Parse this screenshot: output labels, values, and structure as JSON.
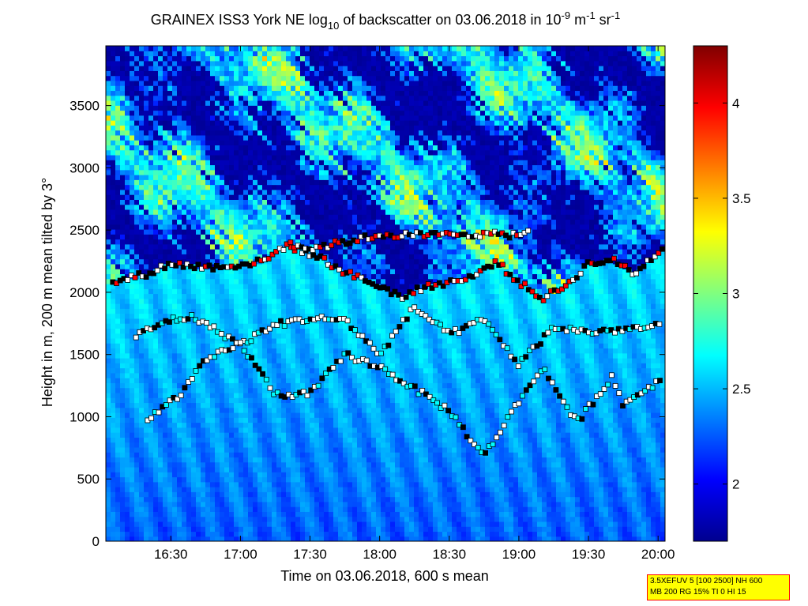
{
  "chart_data": {
    "type": "heatmap",
    "title": {
      "part1": "GRAINEX ISS3 York NE log",
      "sub1": "10",
      "part2": " of backscatter on 03.06.2018 in 10",
      "sup1": "-9",
      "part3": " m",
      "sup2": "-1",
      "part4": " sr",
      "sup3": "-1"
    },
    "xlabel": "Time on 03.06.2018, 600 s mean",
    "ylabel": "Height in m, 200 m mean tilted by 3°",
    "x_ticks": [
      "16:30",
      "17:00",
      "17:30",
      "18:00",
      "18:30",
      "19:00",
      "19:30",
      "20:00"
    ],
    "y_ticks": [
      "0",
      "500",
      "1000",
      "1500",
      "2000",
      "2500",
      "3000",
      "3500"
    ],
    "x_range": [
      "16:02",
      "20:03"
    ],
    "ylim": [
      0,
      3980
    ],
    "colorbar": {
      "range": [
        1.7,
        4.3
      ],
      "ticks": [
        "2",
        "2.5",
        "3",
        "3.5",
        "4"
      ],
      "colormap": "jet"
    },
    "features": {
      "cloud_top_layer": [
        [
          "16:05",
          2080
        ],
        [
          "16:20",
          2150
        ],
        [
          "16:30",
          2230
        ],
        [
          "16:45",
          2200
        ],
        [
          "17:00",
          2220
        ],
        [
          "17:10",
          2250
        ],
        [
          "17:20",
          2380
        ],
        [
          "17:35",
          2270
        ],
        [
          "17:45",
          2160
        ],
        [
          "18:00",
          2050
        ],
        [
          "18:10",
          1960
        ],
        [
          "18:20",
          2050
        ],
        [
          "18:30",
          2080
        ],
        [
          "18:40",
          2120
        ],
        [
          "18:50",
          2250
        ],
        [
          "19:00",
          2080
        ],
        [
          "19:10",
          1950
        ],
        [
          "19:20",
          2050
        ],
        [
          "19:30",
          2230
        ],
        [
          "19:40",
          2260
        ],
        [
          "19:50",
          2150
        ],
        [
          "20:02",
          2360
        ]
      ],
      "upper_layer": [
        [
          "17:20",
          2400
        ],
        [
          "17:30",
          2350
        ],
        [
          "18:00",
          2460
        ],
        [
          "18:25",
          2460
        ],
        [
          "18:35",
          2470
        ],
        [
          "18:55",
          2460
        ],
        [
          "19:05",
          2480
        ]
      ],
      "middle_layer": [
        [
          "16:15",
          1650
        ],
        [
          "16:30",
          1780
        ],
        [
          "16:40",
          1800
        ],
        [
          "17:00",
          1580
        ],
        [
          "17:15",
          1740
        ],
        [
          "17:30",
          1790
        ],
        [
          "17:45",
          1780
        ],
        [
          "18:00",
          1500
        ],
        [
          "18:15",
          1880
        ],
        [
          "18:30",
          1660
        ],
        [
          "18:45",
          1780
        ],
        [
          "19:00",
          1420
        ],
        [
          "19:15",
          1720
        ],
        [
          "19:30",
          1680
        ],
        [
          "19:45",
          1700
        ],
        [
          "20:02",
          1730
        ]
      ],
      "lower_layer": [
        [
          "16:20",
          970
        ],
        [
          "16:35",
          1200
        ],
        [
          "16:45",
          1450
        ],
        [
          "17:00",
          1590
        ],
        [
          "17:15",
          1180
        ],
        [
          "17:30",
          1180
        ],
        [
          "17:45",
          1500
        ],
        [
          "18:00",
          1400
        ],
        [
          "18:30",
          1050
        ],
        [
          "18:45",
          680
        ],
        [
          "18:55",
          980
        ],
        [
          "19:10",
          1400
        ],
        [
          "19:25",
          950
        ],
        [
          "19:40",
          1320
        ],
        [
          "19:45",
          1100
        ],
        [
          "20:02",
          1310
        ]
      ]
    }
  },
  "info_box": {
    "line1": "3.5XEFUV 5 [100 2500] NH 600",
    "line2": "MB 200 RG 15% TI 0 HI 15"
  }
}
